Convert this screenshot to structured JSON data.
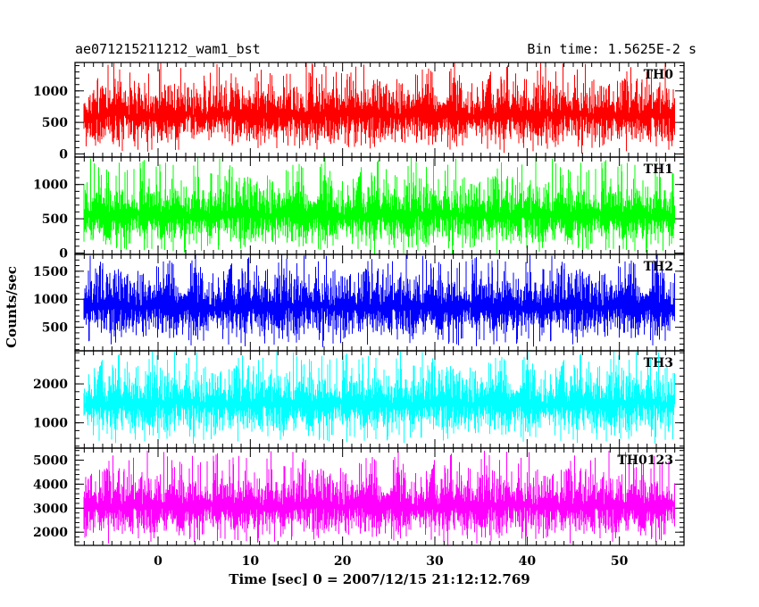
{
  "chart_data": {
    "type": "line",
    "title_left": "ae071215211212_wam1_bst",
    "title_right": "Bin time: 1.5625E-2 s",
    "xlabel": "Time [sec] 0 = 2007/12/15 21:12:12.769",
    "ylabel": "Counts/sec",
    "xlim": [
      -9,
      57
    ],
    "x_ticks": [
      0,
      10,
      20,
      30,
      40,
      50
    ],
    "data_x_range": [
      -8,
      56
    ],
    "bin_time_s": 0.015625,
    "panels": [
      {
        "name": "TH0",
        "color": "#ff0000",
        "ylim": [
          -50,
          1450
        ],
        "y_ticks": [
          0,
          500,
          1000
        ],
        "baseline": 620,
        "low": 50,
        "high": 1450
      },
      {
        "name": "TH1",
        "color": "#00ff00",
        "ylim": [
          -20,
          1400
        ],
        "y_ticks": [
          0,
          500,
          1000
        ],
        "baseline": 560,
        "low": 30,
        "high": 1400
      },
      {
        "name": "TH2",
        "color": "#0000ff",
        "ylim": [
          80,
          1800
        ],
        "y_ticks": [
          500,
          1000,
          1500
        ],
        "baseline": 870,
        "low": 150,
        "high": 1800
      },
      {
        "name": "TH3",
        "color": "#00ffff",
        "ylim": [
          350,
          2850
        ],
        "y_ticks": [
          1000,
          2000
        ],
        "baseline": 1500,
        "low": 480,
        "high": 2850
      },
      {
        "name": "TH0123",
        "color": "#ff00ff",
        "ylim": [
          1450,
          5500
        ],
        "y_ticks": [
          2000,
          3000,
          4000,
          5000
        ],
        "baseline": 3100,
        "low": 1600,
        "high": 5400
      }
    ]
  }
}
